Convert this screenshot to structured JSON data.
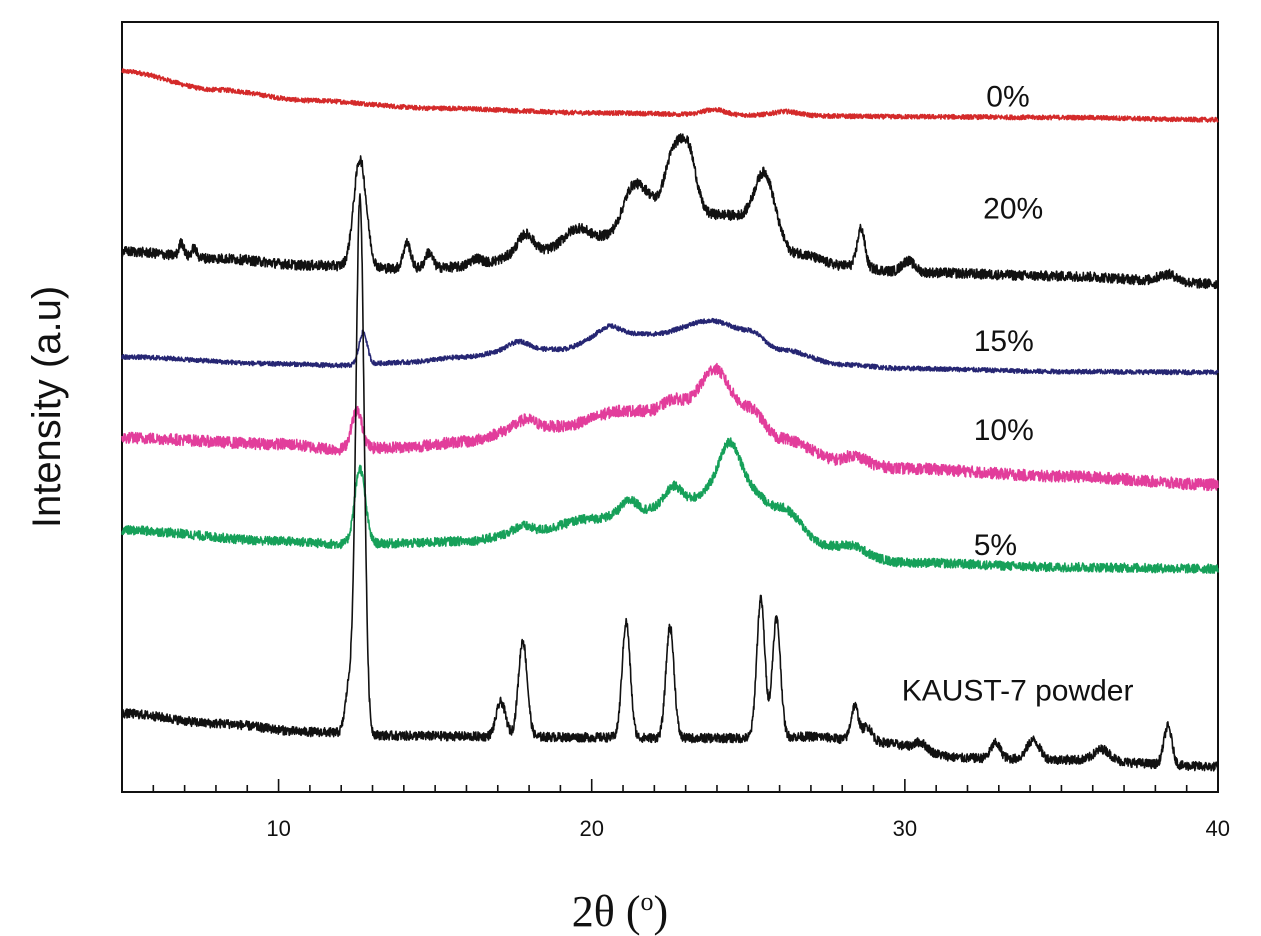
{
  "chart_data": {
    "type": "line",
    "title": "",
    "xlabel": "2θ (o)",
    "xlabel_parts": {
      "main": "2θ (",
      "sup": "o",
      "close": ")"
    },
    "ylabel": "Intensity (a.u)",
    "xlim": [
      5,
      40
    ],
    "ylim": [
      0,
      100
    ],
    "xticks_major": [
      10,
      20,
      30,
      40
    ],
    "xticks_minor_step": 1,
    "y_ticks_shown": false,
    "grid": false,
    "legend": "none (inline labels to the right of each trace)",
    "series": [
      {
        "name": "0%",
        "label": "0%",
        "color": "#d42a2a",
        "baseline": [
          [
            5,
            93.6
          ],
          [
            8,
            91.2
          ],
          [
            11,
            89.8
          ],
          [
            15,
            88.8
          ],
          [
            20,
            88.2
          ],
          [
            25,
            87.9
          ],
          [
            30,
            87.7
          ],
          [
            35,
            87.6
          ],
          [
            40,
            87.3
          ]
        ],
        "peaks": [
          [
            23.9,
            0.7,
            0.35
          ],
          [
            26.2,
            0.5,
            0.4
          ]
        ],
        "noise": 0.3
      },
      {
        "name": "20%",
        "label": "20%",
        "color": "#111111",
        "baseline": [
          [
            5,
            70.2
          ],
          [
            8,
            69.3
          ],
          [
            11,
            68.4
          ],
          [
            14,
            68.0
          ],
          [
            16,
            68.2
          ],
          [
            18,
            70.0
          ],
          [
            20,
            72.0
          ],
          [
            22,
            74.0
          ],
          [
            24,
            75.0
          ],
          [
            25.5,
            74.5
          ],
          [
            26.5,
            70.0
          ],
          [
            28,
            68.4
          ],
          [
            30,
            67.5
          ],
          [
            35,
            67.0
          ],
          [
            40,
            66.0
          ]
        ],
        "peaks": [
          [
            6.9,
            1.8,
            0.08
          ],
          [
            7.3,
            1.2,
            0.08
          ],
          [
            12.6,
            14.0,
            0.2
          ],
          [
            14.1,
            3.3,
            0.12
          ],
          [
            14.8,
            2.0,
            0.12
          ],
          [
            16.3,
            1.0,
            0.2
          ],
          [
            17.9,
            2.5,
            0.25
          ],
          [
            19.5,
            1.5,
            0.35
          ],
          [
            21.3,
            5.0,
            0.3
          ],
          [
            21.8,
            2.5,
            0.25
          ],
          [
            22.6,
            8.5,
            0.3
          ],
          [
            23.1,
            7.5,
            0.25
          ],
          [
            25.5,
            6.0,
            0.3
          ],
          [
            28.6,
            5.0,
            0.12
          ],
          [
            30.1,
            1.5,
            0.2
          ],
          [
            38.4,
            1.0,
            0.3
          ]
        ],
        "noise": 0.65
      },
      {
        "name": "15%",
        "label": "15%",
        "color": "#262673",
        "baseline": [
          [
            5,
            56.5
          ],
          [
            10,
            55.6
          ],
          [
            12,
            55.4
          ],
          [
            14,
            55.8
          ],
          [
            16,
            56.5
          ],
          [
            17.5,
            57.5
          ],
          [
            19,
            57.5
          ],
          [
            20.5,
            59.5
          ],
          [
            22,
            59.5
          ],
          [
            23.8,
            61.2
          ],
          [
            25,
            60.0
          ],
          [
            26,
            57.5
          ],
          [
            28,
            55.5
          ],
          [
            30,
            55.0
          ],
          [
            35,
            54.6
          ],
          [
            40,
            54.5
          ]
        ],
        "peaks": [
          [
            12.7,
            4.2,
            0.13
          ],
          [
            17.7,
            1.0,
            0.3
          ],
          [
            20.6,
            1.0,
            0.3
          ]
        ],
        "noise": 0.3
      },
      {
        "name": "10%",
        "label": "10%",
        "color": "#e23d9b",
        "baseline": [
          [
            5,
            46.0
          ],
          [
            10,
            45.2
          ],
          [
            12,
            44.5
          ],
          [
            14,
            44.8
          ],
          [
            16,
            45.5
          ],
          [
            17.5,
            47.0
          ],
          [
            19,
            47.5
          ],
          [
            21,
            49.5
          ],
          [
            22.5,
            49.5
          ],
          [
            24,
            52.5
          ],
          [
            25,
            50.0
          ],
          [
            26,
            46.0
          ],
          [
            28,
            43.0
          ],
          [
            30,
            42.0
          ],
          [
            35,
            41.0
          ],
          [
            40,
            39.9
          ]
        ],
        "peaks": [
          [
            12.5,
            5.0,
            0.17
          ],
          [
            17.9,
            1.3,
            0.3
          ],
          [
            22.6,
            1.5,
            0.3
          ],
          [
            23.9,
            2.5,
            0.35
          ],
          [
            28.4,
            0.8,
            0.3
          ]
        ],
        "noise": 0.75
      },
      {
        "name": "5%",
        "label": "5%",
        "color": "#16a059",
        "baseline": [
          [
            5,
            34.0
          ],
          [
            10,
            32.6
          ],
          [
            12,
            32.2
          ],
          [
            14,
            32.3
          ],
          [
            16,
            32.6
          ],
          [
            18,
            33.8
          ],
          [
            20,
            35.5
          ],
          [
            21.5,
            36.5
          ],
          [
            23,
            38.0
          ],
          [
            24.5,
            41.0
          ],
          [
            26,
            37.0
          ],
          [
            27.5,
            32.0
          ],
          [
            30,
            29.8
          ],
          [
            35,
            29.2
          ],
          [
            40,
            29.0
          ]
        ],
        "peaks": [
          [
            12.6,
            9.8,
            0.17
          ],
          [
            17.8,
            0.8,
            0.3
          ],
          [
            21.2,
            1.5,
            0.25
          ],
          [
            22.6,
            2.0,
            0.25
          ],
          [
            24.4,
            4.5,
            0.3
          ],
          [
            28.4,
            0.6,
            0.3
          ]
        ],
        "noise": 0.6
      },
      {
        "name": "KAUST-7 powder",
        "label": "KAUST-7 powder",
        "color": "#111111",
        "baseline": [
          [
            5,
            10.2
          ],
          [
            8,
            8.9
          ],
          [
            11,
            7.8
          ],
          [
            14,
            7.3
          ],
          [
            17,
            7.2
          ],
          [
            20,
            7.1
          ],
          [
            23,
            7.0
          ],
          [
            25,
            7.0
          ],
          [
            27,
            7.2
          ],
          [
            29,
            6.5
          ],
          [
            32,
            4.4
          ],
          [
            35,
            4.2
          ],
          [
            40,
            3.3
          ]
        ],
        "peaks": [
          [
            12.6,
            70.0,
            0.13
          ],
          [
            12.25,
            6.0,
            0.12
          ],
          [
            17.1,
            4.5,
            0.15
          ],
          [
            17.8,
            12.5,
            0.14
          ],
          [
            21.1,
            15.0,
            0.13
          ],
          [
            22.5,
            14.5,
            0.13
          ],
          [
            25.4,
            18.0,
            0.13
          ],
          [
            25.9,
            15.5,
            0.13
          ],
          [
            28.4,
            4.5,
            0.12
          ],
          [
            28.8,
            2.0,
            0.15
          ],
          [
            30.5,
            1.0,
            0.2
          ],
          [
            32.9,
            2.0,
            0.15
          ],
          [
            34.1,
            2.5,
            0.2
          ],
          [
            36.3,
            1.5,
            0.25
          ],
          [
            38.4,
            5.0,
            0.13
          ]
        ],
        "noise": 0.6
      }
    ]
  }
}
